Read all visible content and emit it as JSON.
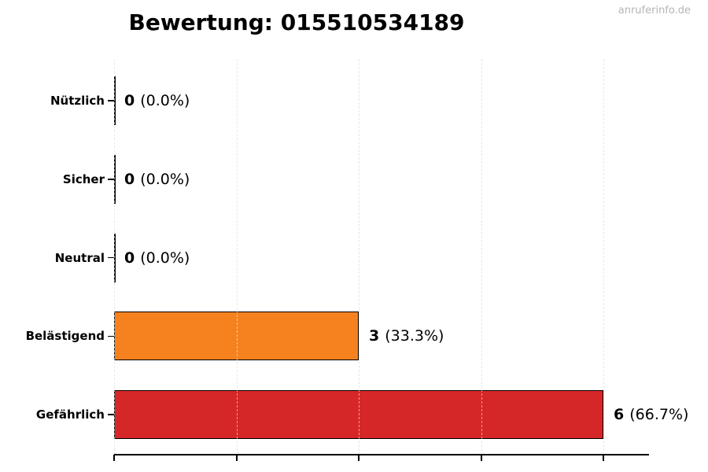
{
  "title": "Bewertung: 015510534189",
  "watermark": "anruferinfo.de",
  "chart_data": {
    "type": "bar",
    "orientation": "horizontal",
    "title": "Bewertung: 015510534189",
    "categories": [
      "Nützlich",
      "Sicher",
      "Neutral",
      "Belästigend",
      "Gefährlich"
    ],
    "values": [
      0,
      0,
      0,
      3,
      6
    ],
    "percents": [
      0.0,
      0.0,
      0.0,
      33.3,
      66.7
    ],
    "value_labels": [
      "0",
      "0",
      "0",
      "3",
      "6"
    ],
    "percent_labels": [
      "(0.0%)",
      "(0.0%)",
      "(0.0%)",
      "(33.3%)",
      "(66.7%)"
    ],
    "bar_colors": [
      "none",
      "none",
      "none",
      "#f5821f",
      "#d62728"
    ],
    "bar_edge_color": "#000000",
    "xlim": [
      0,
      6.56
    ],
    "xticks": [
      0,
      1.5,
      3,
      4.5,
      6
    ],
    "xtick_labels_visible": false,
    "grid": "vertical-dashed",
    "grid_color": "#cccccc",
    "legend": "none"
  },
  "colors": {
    "background": "#ffffff",
    "title_text": "#000000",
    "watermark_text": "#b5b5b5",
    "axis": "#000000",
    "grid": "#cccccc",
    "bar_orange": "#f5821f",
    "bar_red": "#d62728"
  }
}
